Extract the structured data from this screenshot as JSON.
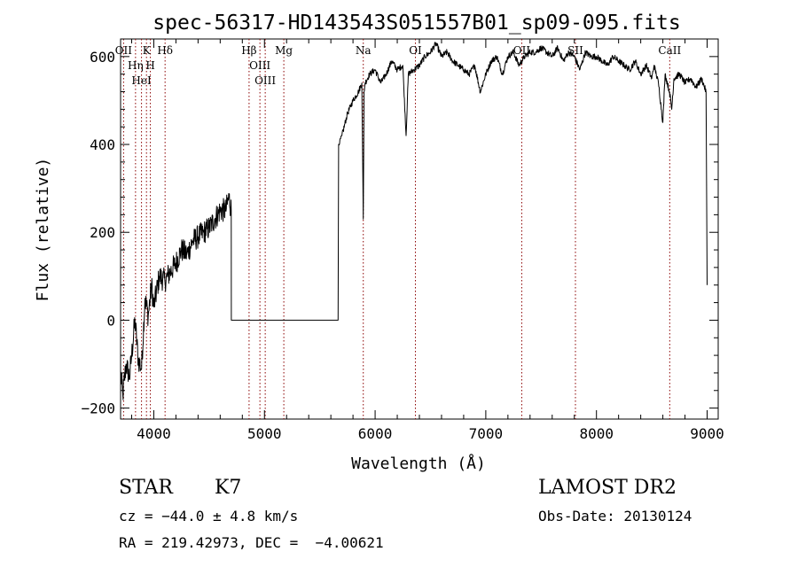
{
  "chart_data": {
    "type": "line",
    "title": "spec-56317-HD143543S051557B01_sp09-095.fits",
    "xlabel": "Wavelength (Å)",
    "ylabel": "Flux (relative)",
    "xlim": [
      3700,
      9100
    ],
    "ylim": [
      -225,
      640
    ],
    "x_ticks": [
      4000,
      5000,
      6000,
      7000,
      8000,
      9000
    ],
    "x_tick_labels": [
      "4000",
      "5000",
      "6000",
      "7000",
      "8000",
      "9000"
    ],
    "y_ticks": [
      -200,
      0,
      200,
      400,
      600
    ],
    "y_tick_labels": [
      "−200",
      "0",
      "200",
      "400",
      "600"
    ],
    "series_color": "#000000",
    "line_marker_color": "#8b0000",
    "spectrum": {
      "x": [
        3700,
        3720,
        3750,
        3780,
        3800,
        3830,
        3860,
        3890,
        3920,
        3950,
        3980,
        4000,
        4050,
        4100,
        4150,
        4200,
        4250,
        4300,
        4350,
        4400,
        4450,
        4500,
        4550,
        4600,
        4650,
        4680,
        4700,
        4701,
        4800,
        5000,
        5200,
        5400,
        5600,
        5660,
        5665,
        5670,
        5700,
        5750,
        5800,
        5850,
        5880,
        5893,
        5900,
        5910,
        5950,
        6000,
        6050,
        6100,
        6150,
        6200,
        6250,
        6280,
        6300,
        6350,
        6400,
        6450,
        6500,
        6550,
        6600,
        6650,
        6700,
        6750,
        6800,
        6850,
        6900,
        6950,
        7000,
        7050,
        7100,
        7150,
        7200,
        7250,
        7300,
        7350,
        7400,
        7450,
        7500,
        7550,
        7600,
        7650,
        7700,
        7750,
        7800,
        7850,
        7900,
        7950,
        8000,
        8050,
        8100,
        8150,
        8200,
        8250,
        8300,
        8350,
        8400,
        8450,
        8500,
        8520,
        8540,
        8560,
        8600,
        8620,
        8660,
        8680,
        8700,
        8750,
        8800,
        8850,
        8900,
        8950,
        8990,
        9000
      ],
      "y": [
        -120,
        -170,
        -100,
        -130,
        -80,
        0,
        -90,
        -110,
        50,
        10,
        80,
        30,
        100,
        90,
        110,
        130,
        160,
        150,
        180,
        190,
        200,
        210,
        230,
        250,
        250,
        280,
        250,
        0,
        0,
        0,
        0,
        0,
        0,
        0,
        0,
        400,
        420,
        470,
        500,
        520,
        540,
        230,
        520,
        540,
        560,
        570,
        540,
        560,
        590,
        570,
        580,
        420,
        560,
        570,
        580,
        600,
        610,
        630,
        600,
        610,
        590,
        580,
        570,
        560,
        580,
        520,
        560,
        590,
        600,
        560,
        600,
        610,
        580,
        600,
        610,
        610,
        620,
        610,
        600,
        620,
        590,
        610,
        600,
        570,
        610,
        600,
        600,
        590,
        580,
        600,
        590,
        580,
        570,
        590,
        560,
        580,
        550,
        580,
        560,
        540,
        450,
        560,
        520,
        480,
        550,
        560,
        540,
        550,
        530,
        550,
        520,
        80
      ]
    },
    "lines": [
      {
        "label": "OII",
        "x": 3727
      },
      {
        "label": "Hη",
        "x": 3835
      },
      {
        "label": "HeI",
        "x": 3889
      },
      {
        "label": "K",
        "x": 3934
      },
      {
        "label": "H",
        "x": 3969
      },
      {
        "label": "Hδ",
        "x": 4102
      },
      {
        "label": "Hβ",
        "x": 4861
      },
      {
        "label": "OIII",
        "x": 4959
      },
      {
        "label": "OIII",
        "x": 5007
      },
      {
        "label": "Mg",
        "x": 5175
      },
      {
        "label": "Na",
        "x": 5893
      },
      {
        "label": "OI",
        "x": 6364
      },
      {
        "label": "OII",
        "x": 7325
      },
      {
        "label": "SII",
        "x": 7810
      },
      {
        "label": "CaII",
        "x": 8662
      }
    ]
  },
  "info": {
    "class": "STAR",
    "subclass": "K7",
    "cz": "cz = −44.0 ± 4.8 km/s",
    "radec": "RA = 219.42973, DEC =  −4.00621",
    "survey": "LAMOST DR2",
    "obs_date": "Obs-Date: 20130124"
  }
}
